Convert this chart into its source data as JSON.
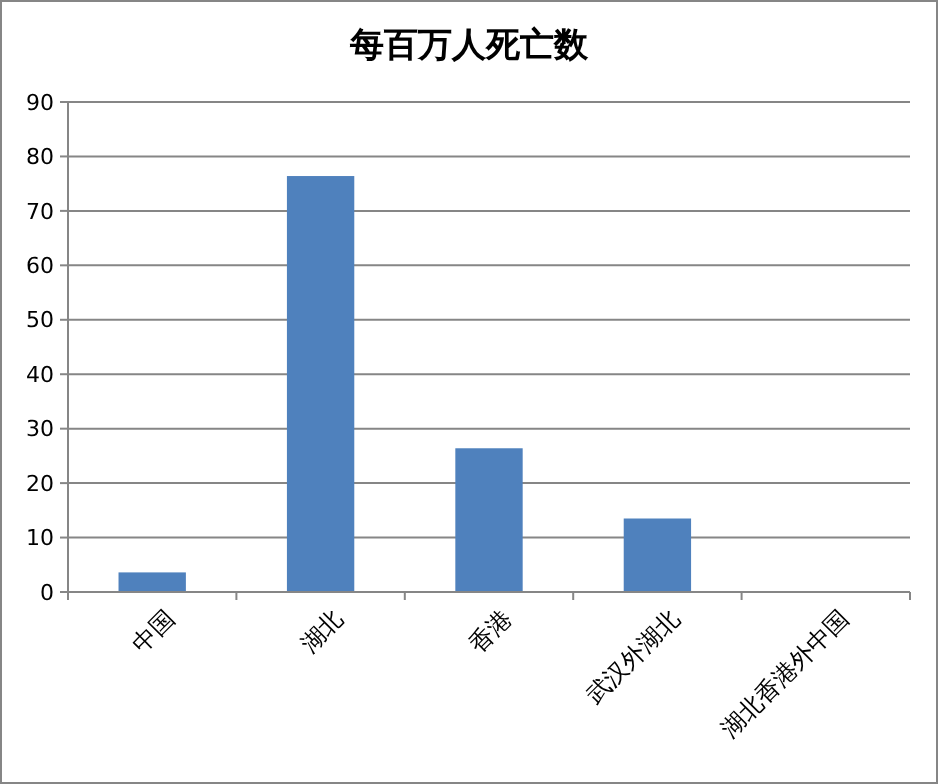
{
  "chart_data": {
    "type": "bar",
    "title": "每百万人死亡数",
    "categories": [
      "中国",
      "湖北",
      "香港",
      "武汉外湖北",
      "湖北香港外中国"
    ],
    "values": [
      3.6,
      76.4,
      26.4,
      13.5,
      0
    ],
    "color": "#4f81bd",
    "ylim": [
      0,
      90
    ],
    "yticks": [
      0,
      10,
      20,
      30,
      40,
      50,
      60,
      70,
      80,
      90
    ],
    "grid": "y"
  }
}
